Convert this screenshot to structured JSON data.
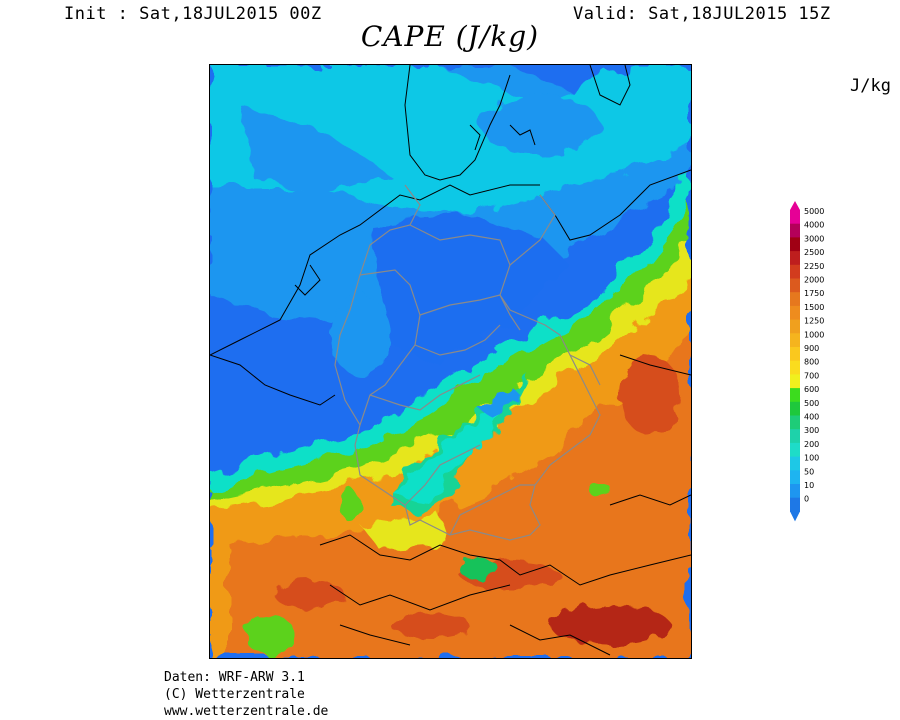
{
  "header": {
    "init": "Init : Sat,18JUL2015 00Z",
    "valid": "Valid: Sat,18JUL2015 15Z",
    "title": "CAPE (J/kg)",
    "unit": "J/kg"
  },
  "colors": {
    "map_fill_bands": {
      "v0": "#1e6ef0",
      "v10": "#1c96f0",
      "v50": "#10c8e6",
      "v100": "#10e0c8",
      "v200": "#14d496",
      "v300": "#12c25a",
      "v500": "#5cd21e",
      "v700": "#e6e61a",
      "v900": "#f2c814",
      "v1250": "#f09a14",
      "v1750": "#e8761c",
      "v2250": "#d64e1a",
      "v3000": "#b42814",
      "v5000": "#e2008c"
    }
  },
  "colorbar": {
    "labels": [
      "5000",
      "4000",
      "3000",
      "2500",
      "2250",
      "2000",
      "1750",
      "1500",
      "1250",
      "1000",
      "900",
      "800",
      "700",
      "600",
      "500",
      "400",
      "300",
      "200",
      "100",
      "50",
      "10",
      "0"
    ],
    "colors": [
      "#e60096",
      "#b4005a",
      "#a00014",
      "#be1e1e",
      "#d23c1e",
      "#dc5a1e",
      "#e6781e",
      "#ee8c1e",
      "#f0a01e",
      "#f5b41e",
      "#fac81e",
      "#fadc1e",
      "#f0f01e",
      "#3cdc1e",
      "#1ec83c",
      "#1ecc78",
      "#1ed2aa",
      "#1edcc8",
      "#1ec8e6",
      "#1eb4f0",
      "#1e96f0",
      "#1e78e6"
    ]
  },
  "credits": {
    "line1": "Daten: WRF-ARW 3.1",
    "line2": "(C) Wetterzentrale",
    "line3": "www.wetterzentrale.de"
  }
}
